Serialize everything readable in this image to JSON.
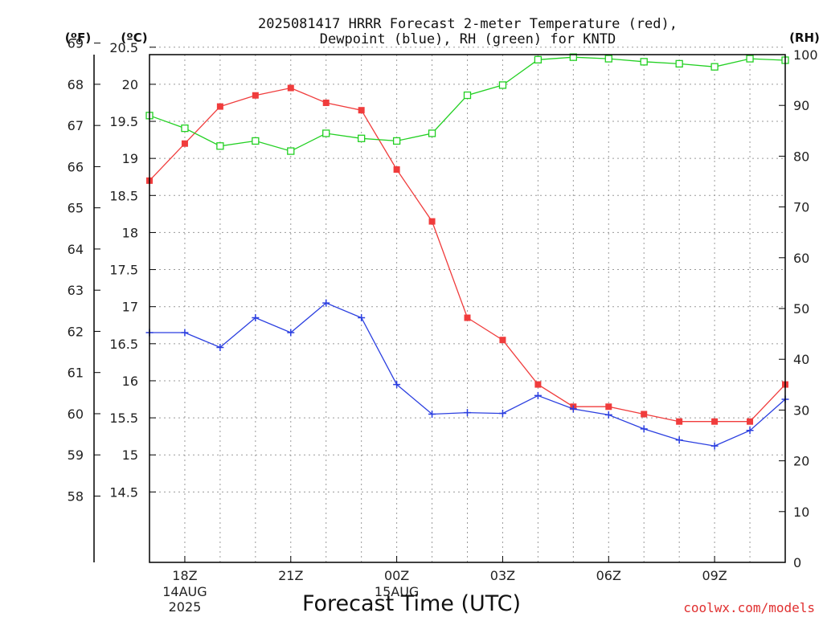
{
  "chart_data": {
    "type": "line",
    "title": "2025081417 HRRR Forecast 2-meter Temperature (red),",
    "subtitle": "Dewpoint (blue), RH (green) for KNTD",
    "xlabel": "Forecast Time (UTC)",
    "left_outer_label": "(ºF)",
    "left_inner_label": "(ºC)",
    "right_label": "(RH)",
    "credit": "coolwx.com/models",
    "x_ticks": [
      {
        "x": 1,
        "label": "18Z",
        "sub1": "14AUG",
        "sub2": "2025"
      },
      {
        "x": 4,
        "label": "21Z",
        "sub1": "",
        "sub2": ""
      },
      {
        "x": 7,
        "label": "00Z",
        "sub1": "15AUG",
        "sub2": ""
      },
      {
        "x": 10,
        "label": "03Z",
        "sub1": "",
        "sub2": ""
      },
      {
        "x": 13,
        "label": "06Z",
        "sub1": "",
        "sub2": ""
      },
      {
        "x": 16,
        "label": "09Z",
        "sub1": "",
        "sub2": ""
      }
    ],
    "xlim": [
      0,
      18
    ],
    "ylim_c": [
      13.55,
      20.4
    ],
    "ylim_rh": [
      0,
      100
    ],
    "celsius_ticks": [
      "14.5",
      "15",
      "15.5",
      "16",
      "16.5",
      "17",
      "17.5",
      "18",
      "18.5",
      "19",
      "19.5",
      "20",
      "20.5"
    ],
    "fahrenheit_ticks": [
      "58",
      "59",
      "60",
      "61",
      "62",
      "63",
      "64",
      "65",
      "66",
      "67",
      "68",
      "69"
    ],
    "rh_ticks": [
      "0",
      "10",
      "20",
      "30",
      "40",
      "50",
      "60",
      "70",
      "80",
      "90",
      "100"
    ],
    "grid": true,
    "series": [
      {
        "key": "temperature",
        "color": "#f03c3c",
        "marker": "filled-square",
        "x": [
          0,
          1,
          2,
          3,
          4,
          5,
          6,
          7,
          8,
          9,
          10,
          11,
          12,
          13,
          14,
          15,
          16,
          17,
          18
        ],
        "values": [
          18.7,
          19.2,
          19.7,
          19.85,
          19.95,
          19.75,
          19.65,
          18.85,
          18.15,
          16.85,
          16.55,
          15.95,
          15.65,
          15.65,
          15.55,
          15.45,
          15.45,
          15.45,
          15.95
        ]
      },
      {
        "key": "dewpoint",
        "color": "#2b3fe0",
        "marker": "plus",
        "x": [
          0,
          1,
          2,
          3,
          4,
          5,
          6,
          7,
          8,
          9,
          10,
          11,
          12,
          13,
          14,
          15,
          16,
          17,
          18
        ],
        "values": [
          16.65,
          16.65,
          16.45,
          16.85,
          16.65,
          17.05,
          16.85,
          15.95,
          15.55,
          15.57,
          15.56,
          15.8,
          15.62,
          15.54,
          15.35,
          15.2,
          15.12,
          15.33,
          15.75
        ]
      },
      {
        "key": "rh",
        "color": "#22d022",
        "marker": "open-square",
        "x": [
          0,
          1,
          2,
          3,
          4,
          5,
          6,
          7,
          8,
          9,
          10,
          11,
          12,
          13,
          14,
          15,
          16,
          17,
          18
        ],
        "values": [
          88,
          85.5,
          82,
          83,
          81,
          84.5,
          83.5,
          83,
          84.5,
          92,
          94,
          99,
          99.5,
          99.2,
          98.6,
          98.2,
          97.6,
          99.2,
          98.9
        ]
      }
    ]
  }
}
